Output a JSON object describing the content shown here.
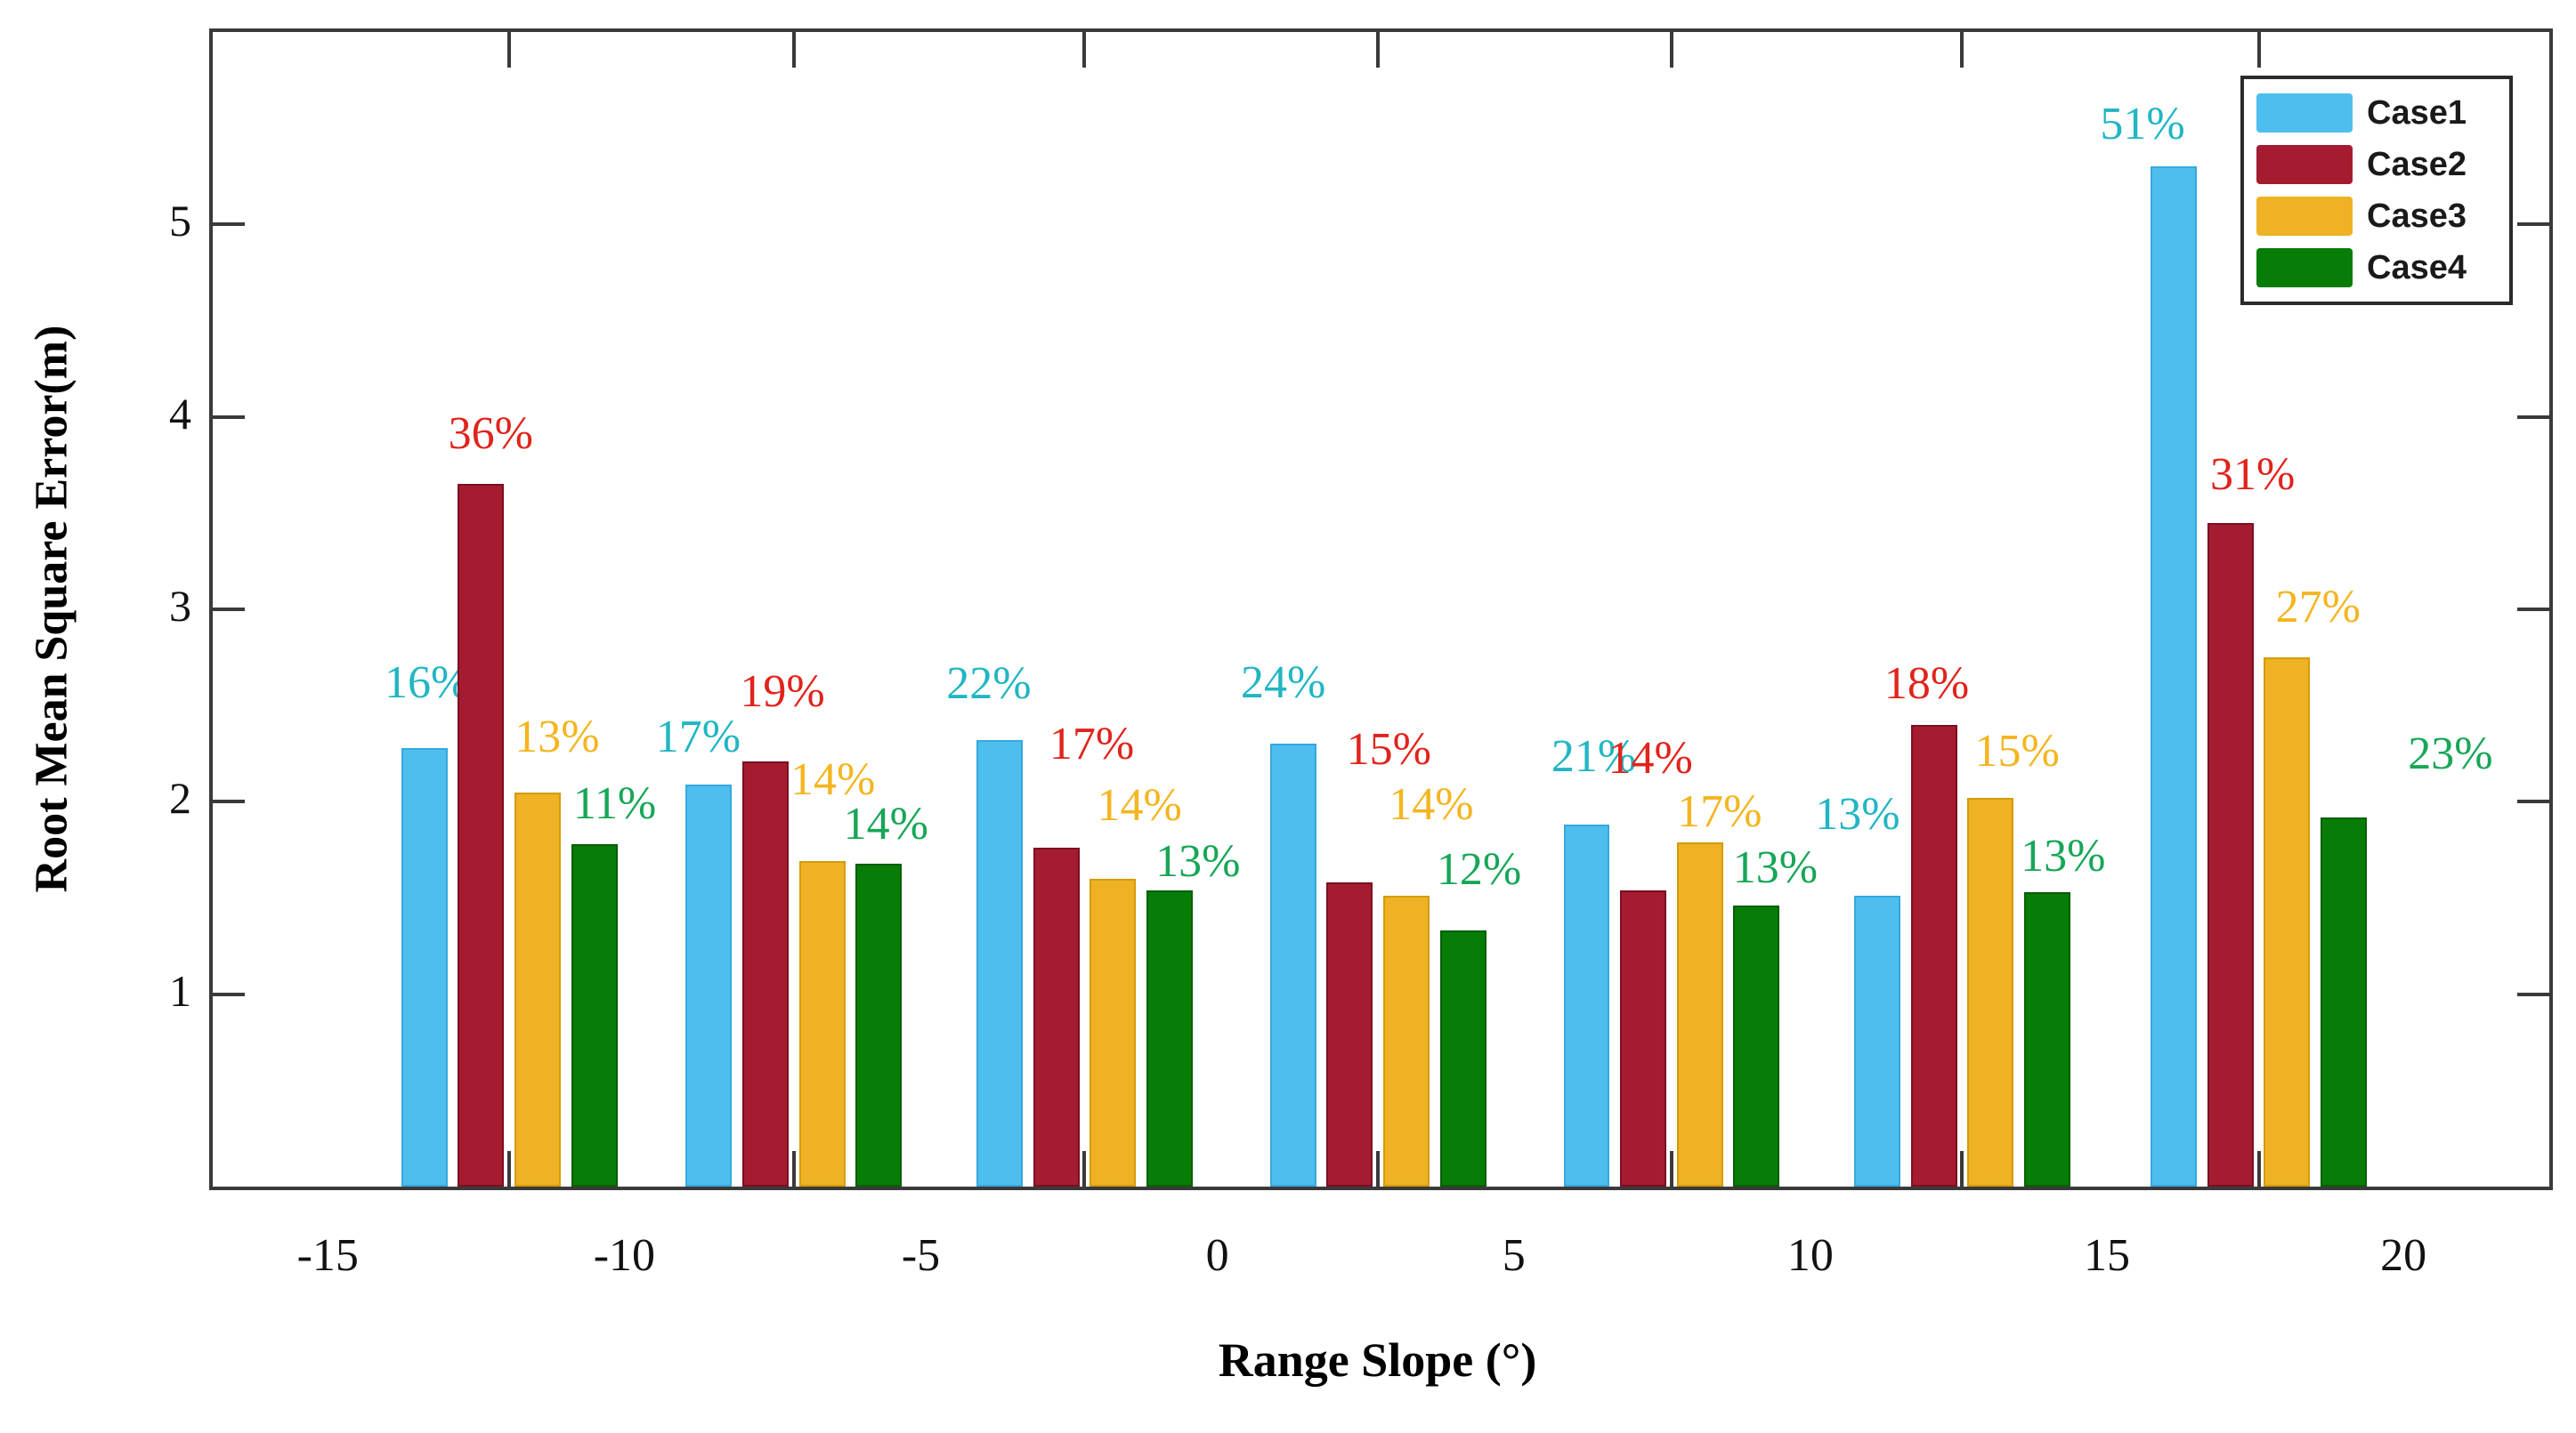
{
  "axes": {
    "xlabel": "Range Slope (°)",
    "ylabel": "Root Mean Square Error(m)"
  },
  "chart_data": {
    "type": "bar",
    "title": "",
    "xlabel": "Range Slope (°)",
    "ylabel": "Root Mean Square Error(m)",
    "xlim": [
      -17,
      22.4
    ],
    "ylim": [
      0,
      6
    ],
    "grid": false,
    "x_tick_values": [
      -15,
      -10,
      -5,
      0,
      5,
      10,
      15,
      20
    ],
    "x_tick_labels": [
      "-15",
      "-10",
      "-5",
      "0",
      "5",
      "10",
      "15",
      "20"
    ],
    "y_tick_values": [
      1,
      2,
      3,
      4,
      5
    ],
    "y_tick_labels": [
      "1",
      "2",
      "3",
      "4",
      "5"
    ],
    "group_centers": [
      -12.0,
      -7.2,
      -2.3,
      2.65,
      7.6,
      12.5,
      17.5
    ],
    "bar_width_units": 0.78,
    "bar_slot_units": 0.955,
    "legend": {
      "position": "top-right",
      "entries": [
        "Case1",
        "Case2",
        "Case3",
        "Case4"
      ]
    },
    "series": [
      {
        "name": "Case1",
        "color": "#4dbeee",
        "edge_color": "#36a8dd",
        "label_color": "#21b6c3",
        "values": [
          2.28,
          2.09,
          2.32,
          2.3,
          1.88,
          1.51,
          5.3
        ],
        "labels": [
          "16%",
          "17%",
          "22%",
          "24%",
          "21%",
          "13%",
          "51%"
        ],
        "label_offsets": [
          [
            3,
            47
          ],
          [
            -12,
            27
          ],
          [
            -12,
            37
          ],
          [
            -11,
            42
          ],
          [
            8,
            50
          ],
          [
            -22,
            65
          ],
          [
            -35,
            21
          ]
        ]
      },
      {
        "name": "Case2",
        "color": "#a51c30",
        "edge_color": "#7d0e22",
        "label_color": "#e0241c",
        "values": [
          3.65,
          2.21,
          1.76,
          1.58,
          1.54,
          2.4,
          3.45
        ],
        "labels": [
          "36%",
          "19%",
          "17%",
          "15%",
          "14%",
          "18%",
          "31%"
        ],
        "label_offsets": [
          [
            11,
            30
          ],
          [
            19,
            52
          ],
          [
            40,
            90
          ],
          [
            44,
            123
          ],
          [
            8,
            122
          ],
          [
            -8,
            20
          ],
          [
            25,
            28
          ]
        ]
      },
      {
        "name": "Case3",
        "color": "#eeb224",
        "edge_color": "#d59c08",
        "label_color": "#f4b51f",
        "values": [
          2.05,
          1.69,
          1.6,
          1.51,
          1.79,
          2.02,
          2.75
        ],
        "labels": [
          "13%",
          "14%",
          "14%",
          "14%",
          "17%",
          "15%",
          "27%"
        ],
        "label_offsets": [
          [
            22,
            36
          ],
          [
            12,
            65
          ],
          [
            30,
            56
          ],
          [
            28,
            76
          ],
          [
            22,
            8
          ],
          [
            30,
            26
          ],
          [
            35,
            30
          ]
        ]
      },
      {
        "name": "Case4",
        "color": "#077d07",
        "edge_color": "#055f05",
        "label_color": "#17a657",
        "values": [
          1.78,
          1.68,
          1.54,
          1.33,
          1.46,
          1.53,
          1.92
        ],
        "labels": [
          "11%",
          "14%",
          "13%",
          "12%",
          "13%",
          "13%",
          "23%"
        ],
        "label_offsets": [
          [
            23,
            19
          ],
          [
            8,
            18
          ],
          [
            32,
            6
          ],
          [
            18,
            42
          ],
          [
            21,
            16
          ],
          [
            18,
            14
          ],
          [
            120,
            45
          ]
        ]
      }
    ]
  }
}
